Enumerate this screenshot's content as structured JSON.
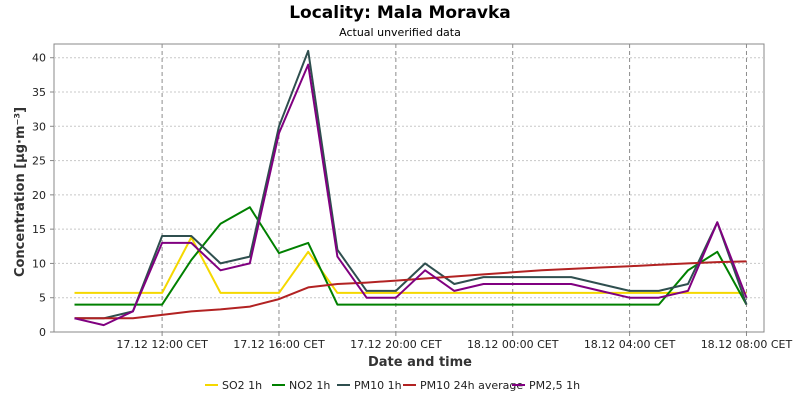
{
  "chart_data": {
    "type": "line",
    "title": "Locality: Mala Moravka",
    "subtitle": "Actual unverified data",
    "xlabel": "Date and time",
    "ylabel": "Concentration [µg·m⁻³]",
    "ylim": [
      0,
      42
    ],
    "yticks": [
      0,
      5,
      10,
      15,
      20,
      25,
      30,
      35,
      40
    ],
    "x_start_label": "17.12 09:00 CET",
    "x_step_hours": 1,
    "xlim_hours": [
      -0.7,
      23.6
    ],
    "xticks": [
      {
        "hour": 3,
        "label": "17.12 12:00 CET"
      },
      {
        "hour": 7,
        "label": "17.12 16:00 CET"
      },
      {
        "hour": 11,
        "label": "17.12 20:00 CET"
      },
      {
        "hour": 15,
        "label": "18.12 00:00 CET"
      },
      {
        "hour": 19,
        "label": "18.12 04:00 CET"
      },
      {
        "hour": 23,
        "label": "18.12 08:00 CET"
      }
    ],
    "grid": true,
    "legend_position": "bottom",
    "series": [
      {
        "name": "SO2 1h",
        "color": "#f5d800",
        "values": [
          5.7,
          5.7,
          5.7,
          5.7,
          13.8,
          5.7,
          5.7,
          5.7,
          11.7,
          5.7,
          5.7,
          5.7,
          5.7,
          5.7,
          5.7,
          5.7,
          5.7,
          5.7,
          5.7,
          5.7,
          5.7,
          5.7,
          5.7,
          5.7
        ]
      },
      {
        "name": "NO2 1h",
        "color": "#008000",
        "values": [
          4,
          4,
          4,
          4,
          10.5,
          15.8,
          18.2,
          11.5,
          13,
          4,
          4,
          4,
          4,
          4,
          4,
          4,
          4,
          4,
          4,
          4,
          4,
          9,
          11.7,
          4
        ]
      },
      {
        "name": "PM10 1h",
        "color": "#2f4f4f",
        "values": [
          2,
          2,
          3,
          14,
          14,
          10,
          11,
          30,
          41,
          12,
          6,
          6,
          10,
          7,
          8,
          8,
          8,
          8,
          7,
          6,
          6,
          7,
          16,
          4
        ]
      },
      {
        "name": "PM10 24h average",
        "color": "#b22222",
        "values": [
          2,
          2,
          2,
          2.5,
          3,
          3.3,
          3.7,
          4.8,
          6.5,
          7,
          7.2,
          7.5,
          7.8,
          8.1,
          8.4,
          8.7,
          9,
          9.2,
          9.4,
          9.6,
          9.8,
          10,
          10.2,
          10.3
        ]
      },
      {
        "name": "PM2,5 1h",
        "color": "#800080",
        "values": [
          2,
          1,
          3,
          13,
          13,
          9,
          10,
          29,
          39,
          11,
          5,
          5,
          9,
          6,
          7,
          7,
          7,
          7,
          6,
          5,
          5,
          6,
          16,
          5
        ]
      }
    ]
  }
}
